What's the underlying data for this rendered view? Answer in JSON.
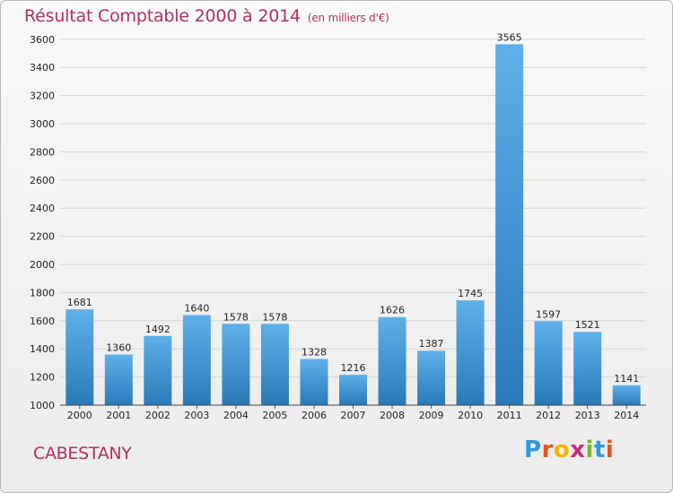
{
  "header": {
    "title": "Résultat Comptable 2000 à 2014",
    "subtitle": "(en milliers d'€)"
  },
  "footer": {
    "commune": "CABESTANY",
    "logo_letters": [
      "P",
      "r",
      "o",
      "x",
      "i",
      "t",
      "i"
    ],
    "logo_colors": [
      "#2e9bd6",
      "#e8511e",
      "#f4b400",
      "#c4307c",
      "#7db72f",
      "#2e9bd6",
      "#e8511e"
    ]
  },
  "colors": {
    "title": "#b03060",
    "bar_light": "#5eb0ea",
    "bar_dark": "#2a7ab8",
    "grid": "#d4d4d4"
  },
  "chart_data": {
    "type": "bar",
    "categories": [
      "2000",
      "2001",
      "2002",
      "2003",
      "2004",
      "2005",
      "2006",
      "2007",
      "2008",
      "2009",
      "2010",
      "2011",
      "2012",
      "2013",
      "2014"
    ],
    "values": [
      1681,
      1360,
      1492,
      1640,
      1578,
      1578,
      1328,
      1216,
      1626,
      1387,
      1745,
      3565,
      1597,
      1521,
      1141
    ],
    "yticks": [
      1000,
      1200,
      1400,
      1600,
      1800,
      2000,
      2200,
      2400,
      2600,
      2800,
      3000,
      3200,
      3400,
      3600
    ],
    "ylim": [
      1000,
      3650
    ],
    "grid": true,
    "xlabel": "",
    "ylabel": ""
  }
}
